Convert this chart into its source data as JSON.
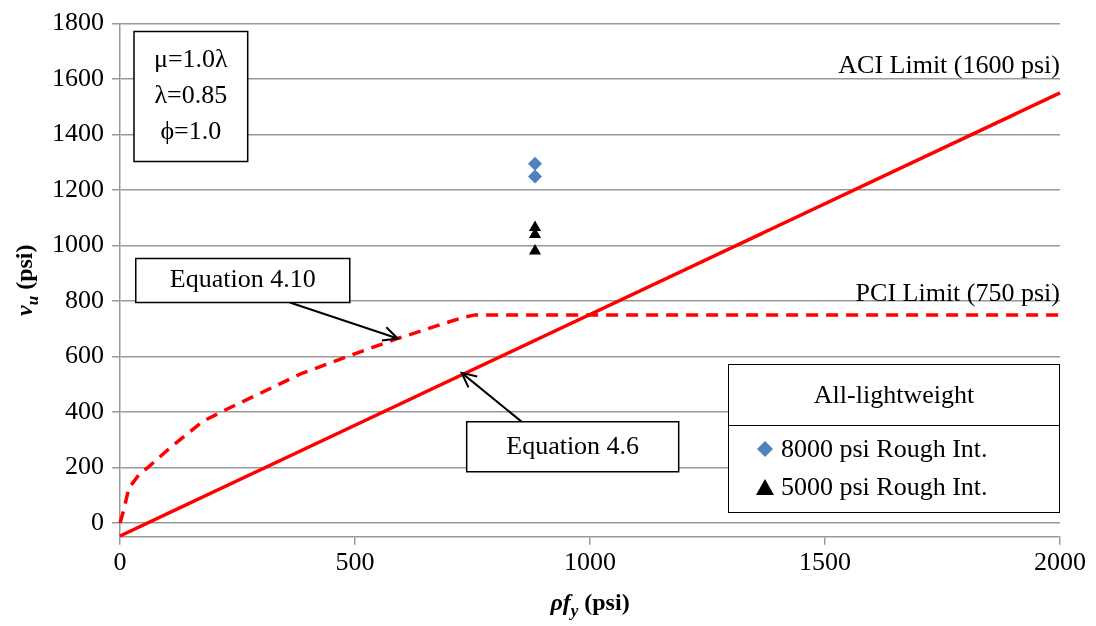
{
  "chart_data": {
    "type": "scatter",
    "xlabel": "ρf$_{y}$ (psi)",
    "ylabel": "v$_{u}$ (psi)",
    "xlim": [
      0,
      2000
    ],
    "xticks": [
      0,
      500,
      1000,
      1500,
      2000
    ],
    "ylim": [
      -50,
      1800
    ],
    "yticks": [
      0,
      200,
      400,
      600,
      800,
      1000,
      1200,
      1400,
      1600,
      1800
    ],
    "grid": "y",
    "legend": "bottom right",
    "legend_title": "All-lightweight",
    "series": [
      {
        "type": "line",
        "color": "#ff0000",
        "line_style": "solid",
        "marker": "none",
        "x": [
          0,
          2000
        ],
        "values": [
          -47,
          1550
        ]
      },
      {
        "type": "line",
        "color": "#ff0000",
        "line_style": "dashed",
        "marker": "none",
        "x": [
          0,
          8,
          19,
          40,
          62,
          104,
          176,
          226,
          298,
          384,
          484,
          591,
          655,
          728,
          756,
          2000
        ],
        "values": [
          0,
          47,
          126,
          173,
          204,
          267,
          366,
          409,
          467,
          537,
          600,
          665,
          700,
          740,
          750,
          750
        ]
      },
      {
        "name": "8000 psi Rough Int.",
        "color": "#4f81bd",
        "marker": "diamond",
        "x": [
          883,
          883
        ],
        "values": [
          1295,
          1249
        ]
      },
      {
        "name": "5000 psi Rough Int.",
        "color": "#000000",
        "marker": "triangle",
        "x": [
          883,
          883,
          883
        ],
        "values": [
          1065,
          1040,
          980
        ]
      }
    ],
    "annotations": [
      "ACI Limit (1600 psi)",
      {
        "text": "PCI Limit (750 psi)",
        "x": 2000,
        "y": 750
      },
      {
        "text": "Equation 4.10",
        "x": 591,
        "y": 665
      },
      {
        "text": "Equation 4.6",
        "x": 727,
        "y": 541
      },
      "μ=1.0λ\nλ=0.85\nϕ=1.0"
    ]
  }
}
